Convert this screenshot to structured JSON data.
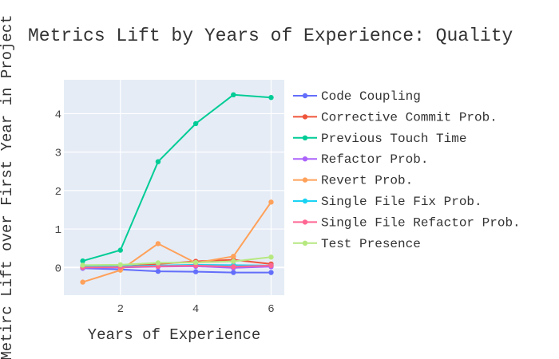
{
  "chart_data": {
    "type": "line",
    "title": "Metrics Lift by Years of Experience: Quality",
    "xlabel": "Years of Experience",
    "ylabel": "Metirc Lift over First Year in Project",
    "x": [
      1,
      2,
      3,
      4,
      5,
      6
    ],
    "xlim": [
      0.5,
      6.35
    ],
    "ylim": [
      -0.72,
      4.88
    ],
    "xticks": [
      2,
      4,
      6
    ],
    "yticks": [
      0,
      1,
      2,
      3,
      4
    ],
    "grid": true,
    "legend": "right",
    "series": [
      {
        "name": "Code Coupling",
        "color": "#636efa",
        "values": [
          -0.02,
          -0.05,
          -0.1,
          -0.11,
          -0.13,
          -0.13
        ]
      },
      {
        "name": "Corrective Commit Prob.",
        "color": "#ef553b",
        "values": [
          0.0,
          0.02,
          0.09,
          0.16,
          0.2,
          0.09
        ]
      },
      {
        "name": "Previous Touch Time",
        "color": "#00cc96",
        "values": [
          0.17,
          0.45,
          2.75,
          3.74,
          4.49,
          4.42
        ]
      },
      {
        "name": "Refactor Prob.",
        "color": "#ab63fa",
        "values": [
          -0.01,
          0.0,
          0.02,
          0.03,
          -0.01,
          0.02
        ]
      },
      {
        "name": "Revert Prob.",
        "color": "#ffa15a",
        "values": [
          -0.38,
          -0.07,
          0.62,
          0.12,
          0.29,
          1.7
        ]
      },
      {
        "name": "Single File Fix Prob.",
        "color": "#19d3f3",
        "values": [
          0.02,
          0.03,
          0.05,
          0.07,
          0.06,
          0.05
        ]
      },
      {
        "name": "Single File Refactor Prob.",
        "color": "#ff6692",
        "values": [
          0.0,
          0.01,
          0.03,
          0.05,
          0.02,
          0.05
        ]
      },
      {
        "name": "Test Presence",
        "color": "#b6e880",
        "values": [
          0.06,
          0.07,
          0.12,
          0.13,
          0.16,
          0.27
        ]
      }
    ]
  }
}
